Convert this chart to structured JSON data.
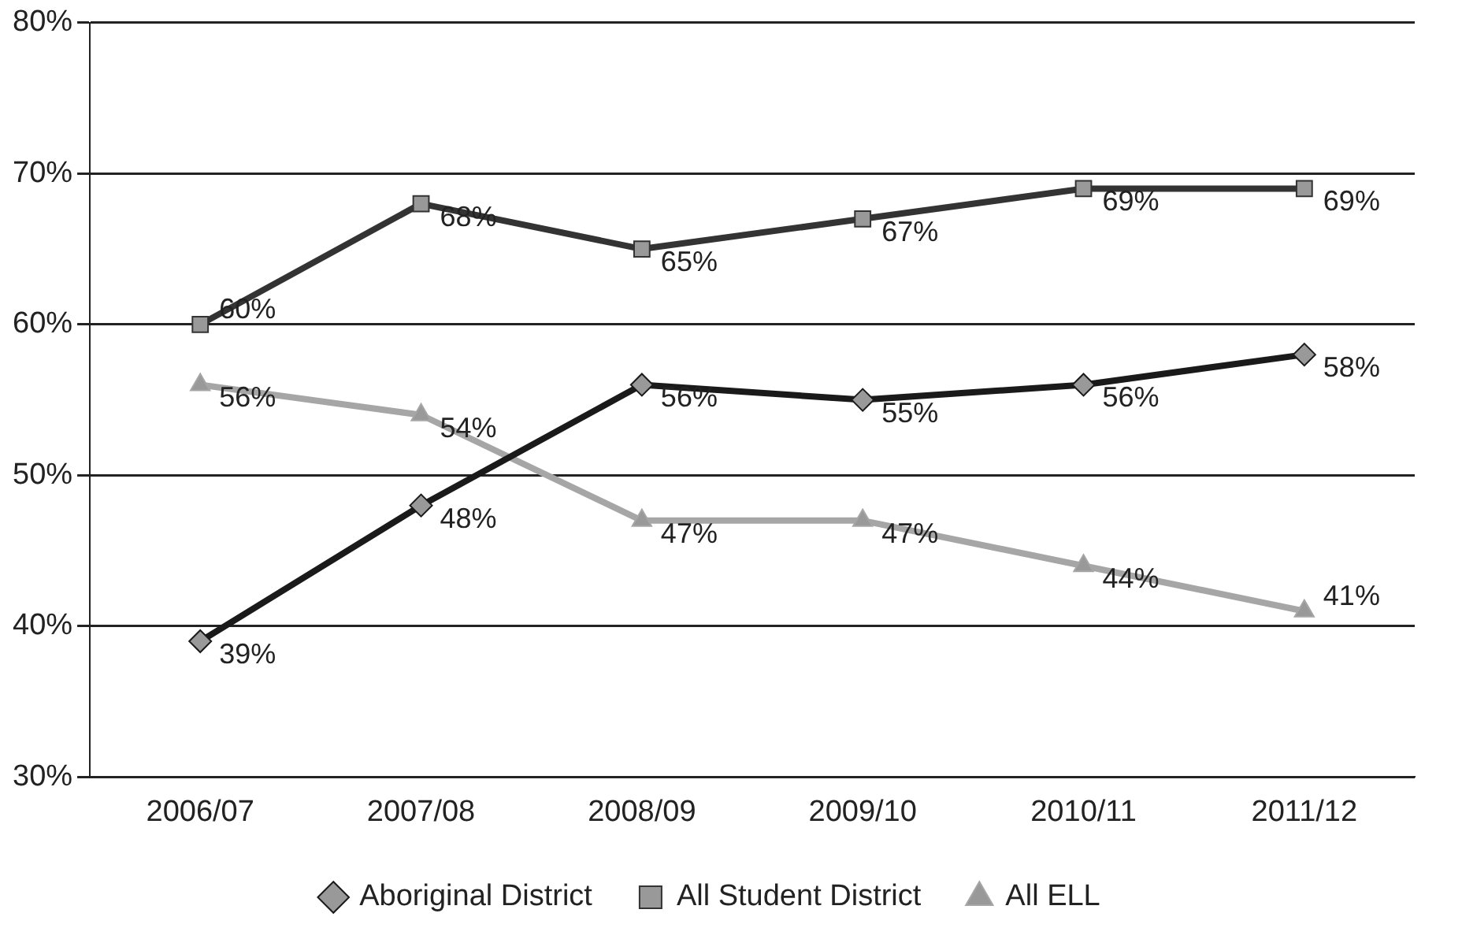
{
  "chart_data": {
    "type": "line",
    "categories": [
      "2006/07",
      "2007/08",
      "2008/09",
      "2009/10",
      "2010/11",
      "2011/12"
    ],
    "series": [
      {
        "name": "Aboriginal District",
        "color": "#1a1a1a",
        "marker": "diamond",
        "values": [
          39,
          48,
          56,
          55,
          56,
          58
        ],
        "value_labels": [
          "39%",
          "48%",
          "56%",
          "55%",
          "56%",
          "58%"
        ]
      },
      {
        "name": "All Student District",
        "color": "#333333",
        "marker": "square",
        "values": [
          60,
          68,
          65,
          67,
          69,
          69
        ],
        "value_labels": [
          "60%",
          "68%",
          "65%",
          "67%",
          "69%",
          "69%"
        ]
      },
      {
        "name": "All ELL",
        "color": "#a6a6a6",
        "marker": "triangle",
        "values": [
          56,
          54,
          47,
          47,
          44,
          41
        ],
        "value_labels": [
          "56%",
          "54%",
          "47%",
          "47%",
          "44%",
          "41%"
        ]
      }
    ],
    "ylim": [
      30,
      80
    ],
    "yticks": [
      {
        "value": 30,
        "label": "30%"
      },
      {
        "value": 40,
        "label": "40%"
      },
      {
        "value": 50,
        "label": "50%"
      },
      {
        "value": 60,
        "label": "60%"
      },
      {
        "value": 70,
        "label": "70%"
      },
      {
        "value": 80,
        "label": "80%"
      }
    ],
    "grid": "y",
    "legend": "bottom",
    "line_style": "solid"
  }
}
